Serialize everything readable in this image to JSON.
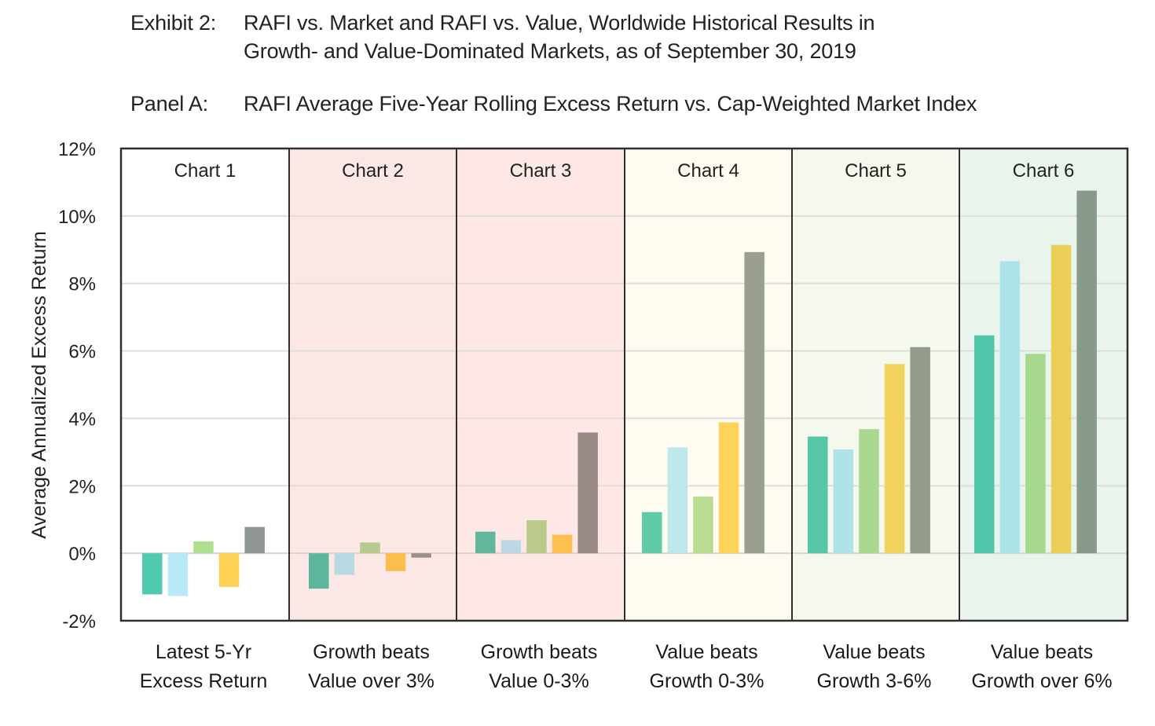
{
  "header": {
    "exhibit_label": "Exhibit 2:",
    "exhibit_title_line1": "RAFI vs. Market and RAFI vs. Value, Worldwide Historical Results in",
    "exhibit_title_line2": "Growth- and Value-Dominated Markets, as of September 30, 2019",
    "panel_label": "Panel A:",
    "panel_title": "RAFI Average Five-Year Rolling Excess Return vs. Cap-Weighted Market Index"
  },
  "chart_data": {
    "type": "bar",
    "title": "RAFI Average Five-Year Rolling Excess Return vs. Cap-Weighted Market Index",
    "xlabel": "",
    "ylabel": "Average Annualized Excess Return",
    "ylim": [
      -2,
      12
    ],
    "yticks": [
      -2,
      0,
      2,
      4,
      6,
      8,
      10,
      12
    ],
    "ytick_labels": [
      "-2%",
      "0%",
      "2%",
      "4%",
      "6%",
      "8%",
      "10%",
      "12%"
    ],
    "grid": true,
    "legend": "none",
    "series_count_per_panel": 5,
    "panels": [
      {
        "title": "Chart 1",
        "category_label_line1": "Latest 5-Yr",
        "category_label_line2": "Excess Return",
        "background": "#ffffff",
        "values": [
          -1.22,
          -1.27,
          0.35,
          -1.0,
          0.78
        ],
        "colors": [
          "#4fcab0",
          "#b8e9f8",
          "#b0df90",
          "#fdd154",
          "#8f9693"
        ]
      },
      {
        "title": "Chart 2",
        "category_label_line1": "Growth beats",
        "category_label_line2": "Value over 3%",
        "background": "#fbe8e6",
        "values": [
          -1.05,
          -0.64,
          0.32,
          -0.53,
          -0.13
        ],
        "colors": [
          "#5cb59c",
          "#b8d8e2",
          "#b8c98c",
          "#fbbe4c",
          "#9a8f8a"
        ]
      },
      {
        "title": "Chart 3",
        "category_label_line1": "Growth beats",
        "category_label_line2": "Value 0-3%",
        "background": "#fde8e6",
        "values": [
          0.64,
          0.39,
          0.98,
          0.55,
          3.58
        ],
        "colors": [
          "#60b79c",
          "#bcd8e4",
          "#bac98c",
          "#fdbf4e",
          "#9a8a86"
        ]
      },
      {
        "title": "Chart 4",
        "category_label_line1": "Value beats",
        "category_label_line2": "Growth 0-3%",
        "background": "#fefcf0",
        "values": [
          1.22,
          3.14,
          1.68,
          3.88,
          8.93
        ],
        "colors": [
          "#60cba7",
          "#bde9ed",
          "#b8dd92",
          "#fdd35a",
          "#9aa090"
        ]
      },
      {
        "title": "Chart 5",
        "category_label_line1": "Value beats",
        "category_label_line2": "Growth 3-6%",
        "background": "#f4f8ed",
        "values": [
          3.46,
          3.08,
          3.68,
          5.61,
          6.11
        ],
        "colors": [
          "#56c6a7",
          "#aee3ea",
          "#a9d88e",
          "#f2d25a",
          "#939b8a"
        ]
      },
      {
        "title": "Chart 6",
        "category_label_line1": "Value beats",
        "category_label_line2": "Growth over 6%",
        "background": "#e9f5ec",
        "values": [
          6.46,
          8.66,
          5.91,
          9.14,
          10.75
        ],
        "colors": [
          "#4fc6a9",
          "#abe4ea",
          "#a8d88e",
          "#e9cf55",
          "#879a8b"
        ]
      }
    ]
  }
}
